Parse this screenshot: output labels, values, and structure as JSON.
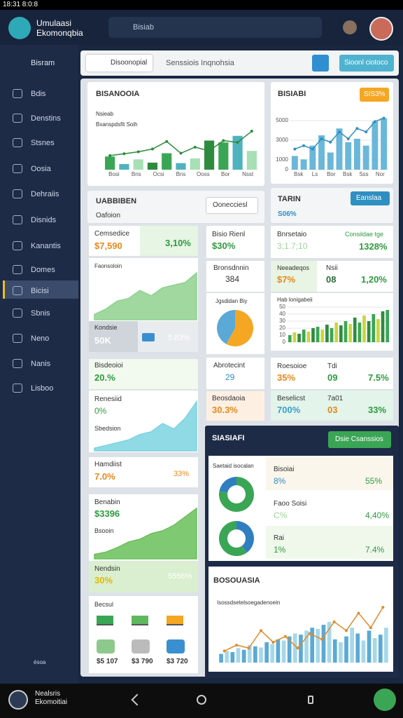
{
  "status_bar": {
    "time": "18:31 8:0:8"
  },
  "header": {
    "app_name": [
      "Umulaasi",
      "Ekomonqbia"
    ],
    "search": "Bisiab"
  },
  "sidebar": {
    "menu": "Bisram",
    "items": [
      "Bdis",
      "Denstins",
      "Stsnes",
      "Oosia",
      "Dehraiis",
      "Disnids",
      "Kanantis",
      "Domes",
      "Bicisi",
      "Sbnis",
      "Neno",
      "Nanis",
      "Lisboo"
    ],
    "footer": "ésoa"
  },
  "toolbar": {
    "tab": "Disoonopial",
    "text": "Senssiois Inqnohsia",
    "button": "Sioonl ciotoco"
  },
  "panel_a": {
    "title": "BISANOOIA",
    "legend": [
      "Nsieab",
      "Bxanspdsfit Soih"
    ],
    "chart": {
      "ylim": [
        0,
        100
      ],
      "xlabels": [
        "Bosi",
        "Bns",
        "Ocsi",
        "Bns",
        "Ooss",
        "Bor",
        "Nsst"
      ],
      "bars": {
        "values": [
          28,
          12,
          22,
          15,
          35,
          14,
          24,
          62,
          58,
          72,
          40
        ],
        "colors": [
          "#3aa655",
          "#4fb3bf",
          "#a8dfb5",
          "#2e8b3e"
        ]
      },
      "line": {
        "values": [
          30,
          34,
          38,
          44,
          60,
          35,
          48,
          40,
          62,
          58,
          82
        ],
        "color": "#2e8b3e"
      }
    }
  },
  "panel_b": {
    "title": "BISIABI",
    "badge": "SIS3%",
    "chart": {
      "ylim": [
        0,
        5500
      ],
      "yticks": [
        0,
        1000,
        3000,
        5000
      ],
      "xlabels": [
        "Bsk",
        "Ls",
        "Bor",
        "Bsk",
        "Sss",
        "Nor"
      ],
      "bars": {
        "values": [
          1400,
          1050,
          2450,
          3500,
          1750,
          4200,
          2800,
          3150,
          2450,
          4900,
          5250
        ],
        "colors": [
          "#6ab7d9"
        ]
      },
      "line": {
        "values": [
          2100,
          2450,
          2100,
          3150,
          2800,
          3850,
          3150,
          4200,
          3850,
          4900,
          5250
        ],
        "color": "#2f8fc0"
      }
    }
  },
  "panel_c": {
    "title": "UABBIBEN",
    "subtitle": "Oafoion",
    "button": "Oonecciesl"
  },
  "panel_d": {
    "title": "TARIN",
    "button": "Eanslaa",
    "value": "S06%"
  },
  "left_cards": {
    "c1": {
      "label": "Cemsedice",
      "value": "$7,590",
      "change": "3,10%"
    },
    "area1": {
      "label": "Faonsoloin",
      "chart": {
        "ylim": [
          0,
          100
        ],
        "area": {
          "values": [
            10,
            20,
            35,
            40,
            55,
            45,
            60,
            65,
            70,
            88
          ],
          "color": "#8fd18f"
        }
      }
    },
    "c2": {
      "label": "Kondsie",
      "value": "50K",
      "change": "5.83%"
    },
    "c3": {
      "label": "Bisdeoioi",
      "value": "20.%"
    },
    "area2": {
      "label": "Renesiid",
      "value": "0%",
      "sub": "Sbedsion",
      "chart": {
        "ylim": [
          0,
          100
        ],
        "area": {
          "values": [
            5,
            10,
            15,
            20,
            30,
            35,
            50,
            40,
            60,
            90
          ],
          "color": "#7dd3e0"
        }
      }
    },
    "c4": {
      "label": "Hamdiist",
      "value": "7.0%",
      "change": "33%"
    },
    "area3": {
      "label": "Benabin",
      "value": "$3396",
      "sub": "Bsooin",
      "chart": {
        "ylim": [
          0,
          100
        ],
        "area": {
          "values": [
            8,
            12,
            20,
            30,
            35,
            45,
            50,
            60,
            75,
            90
          ],
          "color": "#6abf5a"
        }
      }
    },
    "c5": {
      "label": "Nendsin",
      "value": "30%",
      "change": "5556%"
    },
    "icons": {
      "label": "Becsul",
      "amounts": [
        "$5 107",
        "$3 790",
        "$3 720"
      ]
    }
  },
  "mid_cards": {
    "c1": {
      "label": "Bisio Rienl",
      "value": "$30%"
    },
    "c2": {
      "label": "Bronsdnnin",
      "value": "384"
    },
    "pie": {
      "label": "Jgsdidan Biy",
      "values": [
        58,
        42
      ],
      "colors": [
        "#f5a623",
        "#5aa9d6"
      ]
    },
    "c3": {
      "label": "Abrotecint",
      "value": "29"
    },
    "c4": {
      "label": "Beosdaoia",
      "value": "30.3%"
    }
  },
  "right_cards": {
    "r1": {
      "label": "Bnrsetaio",
      "value": "3;1.7;10",
      "label2": "Consildae tge",
      "value2": "1328%"
    },
    "r2": {
      "label": "Neeadeqos",
      "value": "$7%",
      "label2": "Nsii",
      "value2": "08",
      "change": "1,20%"
    },
    "chart": {
      "label": "Hab lonigabeii",
      "chart": {
        "ylim": [
          0,
          50
        ],
        "yticks": [
          0,
          10,
          20,
          30,
          40,
          50
        ],
        "bars": {
          "values": [
            10,
            14,
            12,
            18,
            15,
            20,
            22,
            18,
            25,
            20,
            28,
            24,
            30,
            26,
            35,
            28,
            38,
            30,
            40,
            33,
            44,
            46
          ],
          "colors": [
            "#3aa655",
            "#c9d63a",
            "#2e8b3e"
          ]
        }
      }
    },
    "r3": {
      "label": "Roesoioe",
      "value": "35%",
      "label2": "Tdi",
      "value2": "09",
      "change": "7.5%"
    },
    "r4": {
      "label": "Beselicst",
      "value": "700%",
      "label2": "7a01",
      "value2": "03",
      "change": "33%"
    }
  },
  "dark_panel": {
    "title": "SIASIAFI",
    "button": "Dsie Csanssios",
    "donut_label": "Saetaid isocalan",
    "donuts": [
      {
        "values": [
          78,
          22
        ],
        "colors": [
          "#3aa655",
          "#2f7fc0"
        ]
      },
      {
        "values": [
          40,
          60
        ],
        "colors": [
          "#2f7fc0",
          "#3aa655"
        ]
      }
    ],
    "rows": [
      {
        "label": "Bisoiai",
        "value": "8%",
        "change": "55%"
      },
      {
        "label": "Faoo Soisi",
        "value": "C%",
        "change": "4,40%"
      },
      {
        "label": "Rai",
        "value": "1%",
        "change": "7.4%"
      }
    ]
  },
  "bottom_chart": {
    "title": "BOSOUASIA",
    "subtitle": "Isossdsetelsoegadenoein",
    "chart": {
      "ylim": [
        0,
        100
      ],
      "bars": {
        "values": [
          15,
          20,
          18,
          25,
          22,
          30,
          28,
          26,
          35,
          32,
          40,
          38,
          45,
          50,
          48,
          55,
          60,
          58,
          65,
          70,
          40,
          35,
          45,
          60,
          50,
          38,
          55,
          42,
          48,
          60
        ],
        "colors": [
          "#5aa9d6",
          "#a6d8e8"
        ]
      },
      "line": {
        "values": [
          20,
          30,
          25,
          55,
          35,
          45,
          25,
          50,
          40,
          70,
          55,
          85,
          60,
          95
        ],
        "color": "#e08a2a"
      }
    }
  },
  "bottom_nav": {
    "brand": [
      "Nealsris",
      "Ekomoitiai"
    ]
  }
}
